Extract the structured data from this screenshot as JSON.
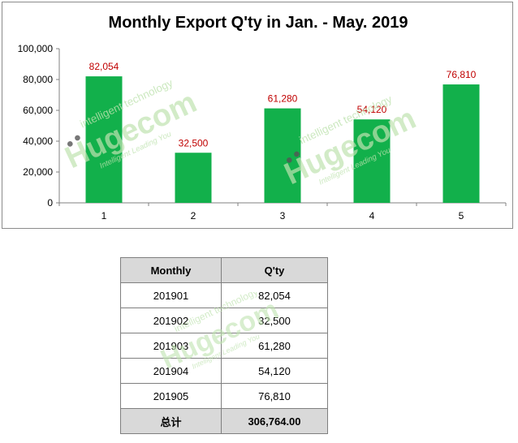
{
  "chart_data": {
    "type": "bar",
    "title": "Monthly Export Q'ty in Jan. - May. 2019",
    "categories": [
      "1",
      "2",
      "3",
      "4",
      "5"
    ],
    "values": [
      82054,
      32500,
      61280,
      54120,
      76810
    ],
    "data_labels": [
      "82,054",
      "32,500",
      "61,280",
      "54,120",
      "76,810"
    ],
    "yticks": [
      "0",
      "20,000",
      "40,000",
      "60,000",
      "80,000",
      "100,000"
    ],
    "ylim": [
      0,
      100000
    ],
    "grid": false,
    "legend": "none",
    "bar_color": "#12b04b",
    "label_color": "#c00000"
  },
  "table": {
    "headers": [
      "Monthly",
      "Q'ty"
    ],
    "rows": [
      [
        "201901",
        "82,054"
      ],
      [
        "201902",
        "32,500"
      ],
      [
        "201903",
        "61,280"
      ],
      [
        "201904",
        "54,120"
      ],
      [
        "201905",
        "76,810"
      ]
    ],
    "total_label": "总计",
    "total_value": "306,764.00",
    "header_bg": "#d9d9d9"
  },
  "watermark": {
    "brand": "Hugecom",
    "tagline": "intelligent technology",
    "slogan": "Intelligent Leading You",
    "color": "#bfe3b0"
  }
}
